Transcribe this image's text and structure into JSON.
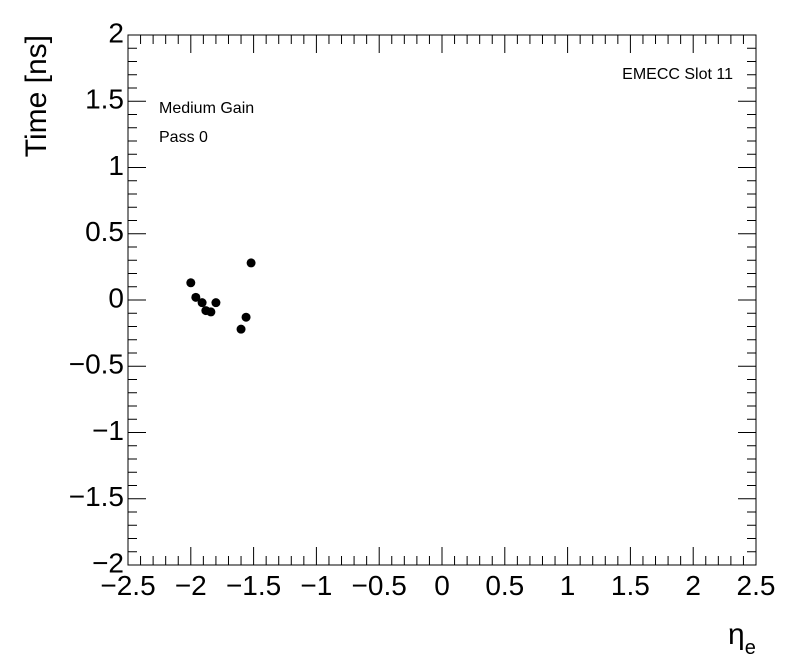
{
  "chart_data": {
    "type": "scatter",
    "xlabel": {
      "symbol": "η",
      "subscript": "e"
    },
    "ylabel": "Time [ns]",
    "annotations": [
      "Medium Gain",
      "Pass 0",
      "EMECC Slot 11"
    ],
    "x": [
      -2.0,
      -1.96,
      -1.91,
      -1.88,
      -1.84,
      -1.8,
      -1.6,
      -1.56,
      -1.52
    ],
    "values": [
      0.13,
      0.02,
      -0.02,
      -0.08,
      -0.09,
      -0.02,
      -0.22,
      -0.13,
      0.28
    ],
    "color": "#000000",
    "xlim": [
      -2.5,
      2.5
    ],
    "xticks": [
      {
        "value": -2.5,
        "label": "−2.5"
      },
      {
        "value": -2,
        "label": "−2"
      },
      {
        "value": -1.5,
        "label": "−1.5"
      },
      {
        "value": -1,
        "label": "−1"
      },
      {
        "value": -0.5,
        "label": "−0.5"
      },
      0,
      0.5,
      1,
      1.5,
      2,
      2.5
    ],
    "ylim": [
      -2,
      2
    ],
    "yticks": [
      {
        "value": -2,
        "label": "−2"
      },
      {
        "value": -1.5,
        "label": "−1.5"
      },
      {
        "value": -1,
        "label": "−1"
      },
      {
        "value": -0.5,
        "label": "−0.5"
      },
      0,
      0.5,
      1,
      1.5,
      2
    ]
  }
}
